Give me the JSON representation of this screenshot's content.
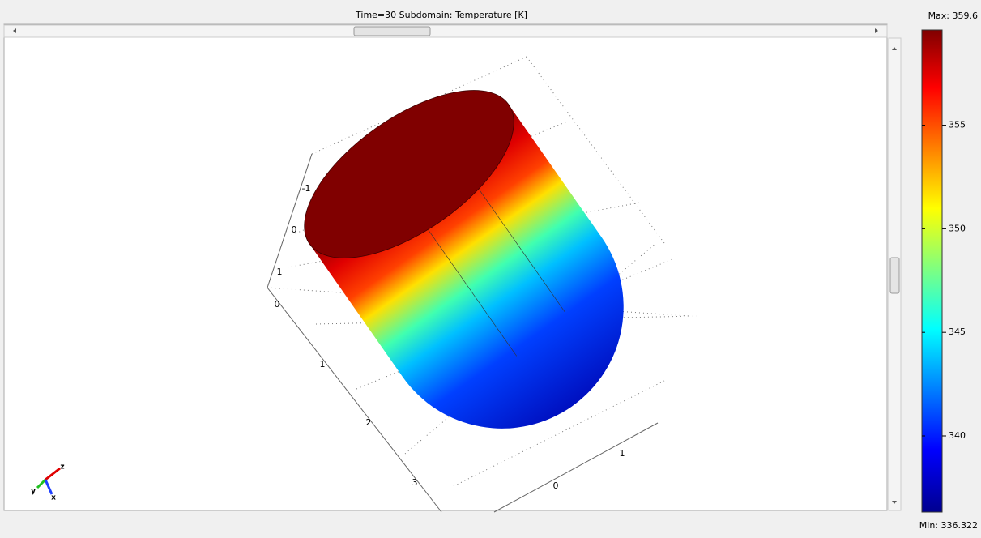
{
  "header": {
    "title": "Time=30   Subdomain: Temperature [K]"
  },
  "colorbar": {
    "max": {
      "value": 359.6,
      "label": "Max: 359.6"
    },
    "min": {
      "value": 336.322,
      "label": "Min: 336.322"
    },
    "ticks": [
      355,
      350,
      345,
      340
    ]
  },
  "scene": {
    "axis_labels": [
      "-1",
      "0",
      "1",
      "0",
      "1",
      "2",
      "3",
      "1",
      "0"
    ],
    "triad": [
      "z",
      "y",
      "x"
    ]
  }
}
